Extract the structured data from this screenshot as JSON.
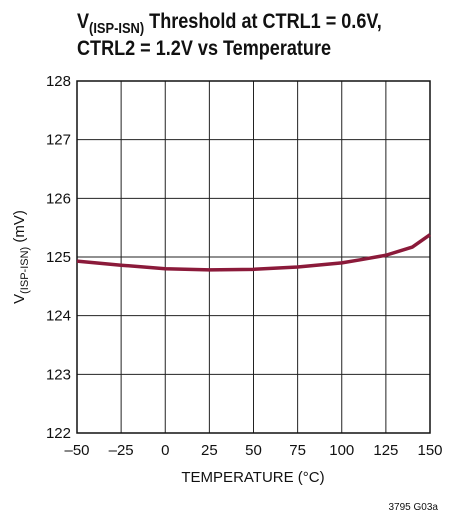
{
  "chart_data": {
    "type": "line",
    "title": [
      "V",
      "(ISP-ISN)",
      " Threshold at CTRL1 = 0.6V,",
      "CTRL2 = 1.2V vs Temperature"
    ],
    "xlabel": "TEMPERATURE (°C)",
    "ylabel": [
      "V",
      "(ISP-ISN)",
      " (mV)"
    ],
    "note": "3795 G03a",
    "x": [
      -50,
      -25,
      0,
      25,
      50,
      75,
      100,
      110,
      125,
      140,
      150
    ],
    "series": [
      {
        "color": "#8b1a3a",
        "values": [
          124.93,
          124.86,
          124.8,
          124.78,
          124.79,
          124.83,
          124.9,
          124.95,
          125.03,
          125.17,
          125.38
        ]
      }
    ],
    "xlim": [
      -50,
      150
    ],
    "xticks": [
      {
        "value": -50,
        "label": "–50"
      },
      {
        "value": -25,
        "label": "–25"
      },
      0,
      25,
      50,
      75,
      100,
      125,
      150
    ],
    "ylim": [
      122,
      128
    ],
    "yticks": [
      122,
      123,
      124,
      125,
      126,
      127,
      128
    ],
    "grid": true
  }
}
